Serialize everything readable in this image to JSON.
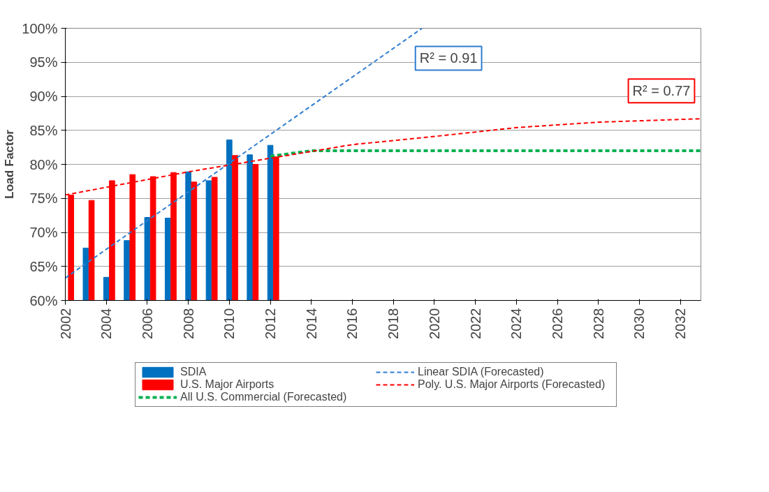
{
  "chart_data": {
    "type": "bar",
    "ylabel": "Load Factor",
    "x": [
      2002,
      2003,
      2004,
      2005,
      2006,
      2007,
      2008,
      2009,
      2010,
      2011,
      2012
    ],
    "series": [
      {
        "name": "SDIA",
        "color": "#0070c0",
        "values": [
          null,
          67.7,
          63.4,
          68.8,
          72.2,
          72.1,
          78.9,
          77.6,
          83.6,
          81.4,
          82.8
        ]
      },
      {
        "name": "U.S. Major Airports",
        "color": "#ff0000",
        "values": [
          75.5,
          74.7,
          77.6,
          78.5,
          78.2,
          78.8,
          77.4,
          78.1,
          81.3,
          80.0,
          81.1
        ]
      },
      {
        "name": "All U.S. Commercial (Forecasted)",
        "type": "line",
        "color": "#00b050",
        "line_style": "dashed",
        "x": [
          2012,
          2014,
          2033
        ],
        "values": [
          81.2,
          82.0,
          82.0
        ]
      },
      {
        "name": "Linear SDIA (Forecasted)",
        "type": "line",
        "color": "#2e7dd1",
        "line_style": "dashed",
        "x": [
          2002,
          2019.4
        ],
        "values": [
          63.3,
          100
        ]
      },
      {
        "name": "Poly. U.S. Major Airports (Forecasted)",
        "type": "line",
        "color": "#ff0000",
        "line_style": "dashed",
        "x": [
          2002,
          2005,
          2008,
          2011,
          2014,
          2016,
          2020,
          2024,
          2028,
          2033
        ],
        "values": [
          75.5,
          77.2,
          78.9,
          80.4,
          81.9,
          82.9,
          84.1,
          85.4,
          86.2,
          86.7
        ]
      }
    ],
    "xlim": [
      2002,
      2033
    ],
    "xticks": [
      2002,
      2004,
      2006,
      2008,
      2010,
      2012,
      2014,
      2016,
      2018,
      2020,
      2022,
      2024,
      2026,
      2028,
      2030,
      2032
    ],
    "ylim": [
      60,
      100
    ],
    "yticks": [
      {
        "value": 60,
        "label": "60%"
      },
      {
        "value": 65,
        "label": "65%"
      },
      {
        "value": 70,
        "label": "70%"
      },
      {
        "value": 75,
        "label": "75%"
      },
      {
        "value": 80,
        "label": "80%"
      },
      {
        "value": 85,
        "label": "85%"
      },
      {
        "value": 90,
        "label": "90%"
      },
      {
        "value": 95,
        "label": "95%"
      },
      {
        "value": 100,
        "label": "100%"
      }
    ],
    "annotations": [
      "R² = 0.91",
      "R² = 0.77"
    ],
    "grid": "y",
    "legend": "bottom",
    "marker": "none"
  }
}
